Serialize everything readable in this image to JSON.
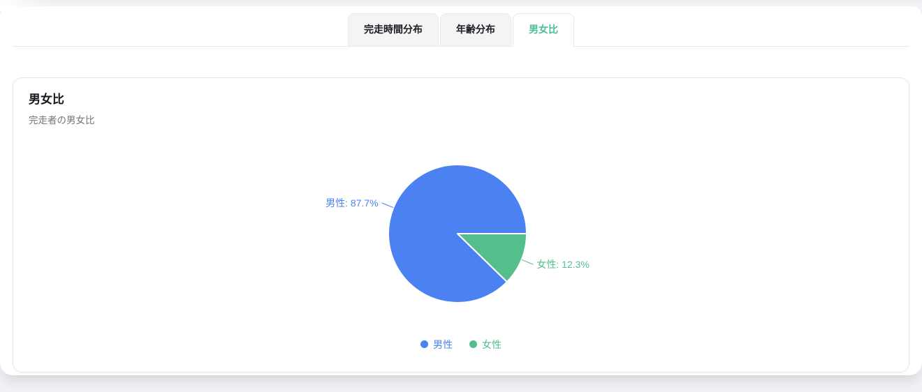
{
  "tab_bar": {
    "tabs": [
      {
        "label": "完走時間分布",
        "active": false
      },
      {
        "label": "年齢分布",
        "active": false
      },
      {
        "label": "男女比",
        "active": true
      }
    ]
  },
  "card": {
    "title": "男女比",
    "subtitle": "完走者の男女比"
  },
  "chart_data": {
    "type": "pie",
    "title": "男女比",
    "series": [
      {
        "name": "男性",
        "key": "male",
        "value": 87.7,
        "color": "#4b81f0"
      },
      {
        "name": "女性",
        "key": "female",
        "value": 12.3,
        "color": "#55be8d"
      }
    ],
    "value_unit": "%",
    "start_angle_deg": 0,
    "sweep_direction": "counterclockwise",
    "label_format": "{name}: {value}%",
    "legend_position": "bottom",
    "slice_stroke": "#ffffff"
  },
  "theme": {
    "active_tab_color": "#4cbe93",
    "page_background": "#f0f1f4",
    "panel_background": "#ffffff",
    "card_border": "#e7e8ea",
    "title_color": "#15181f",
    "subtitle_color": "#72757d"
  }
}
